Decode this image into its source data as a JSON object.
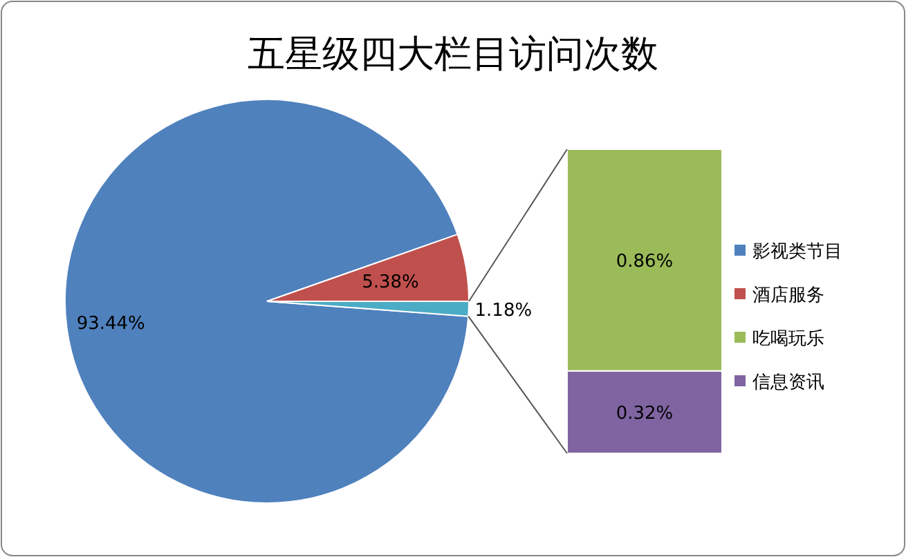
{
  "chart_data": [
    {
      "type": "pie",
      "title": "五星级四大栏目访问次数",
      "categories": [
        "影视类节目",
        "酒店服务",
        null
      ],
      "values": [
        93.44,
        5.38,
        1.18
      ],
      "colors": [
        "#4f81bd",
        "#c0504d",
        "#4bacc6"
      ],
      "value_labels": [
        "93.44%",
        "5.38%",
        "1.18%"
      ],
      "legend": "right"
    },
    {
      "type": "bar",
      "stacked": true,
      "categories": [
        null
      ],
      "series": [
        {
          "name": "信息资讯",
          "color": "#8064a2",
          "values": [
            0.32
          ],
          "value_labels": [
            "0.32%"
          ]
        },
        {
          "name": "吃喝玩乐",
          "color": "#9bbb59",
          "values": [
            0.86
          ],
          "value_labels": [
            "0.86%"
          ]
        }
      ]
    }
  ]
}
